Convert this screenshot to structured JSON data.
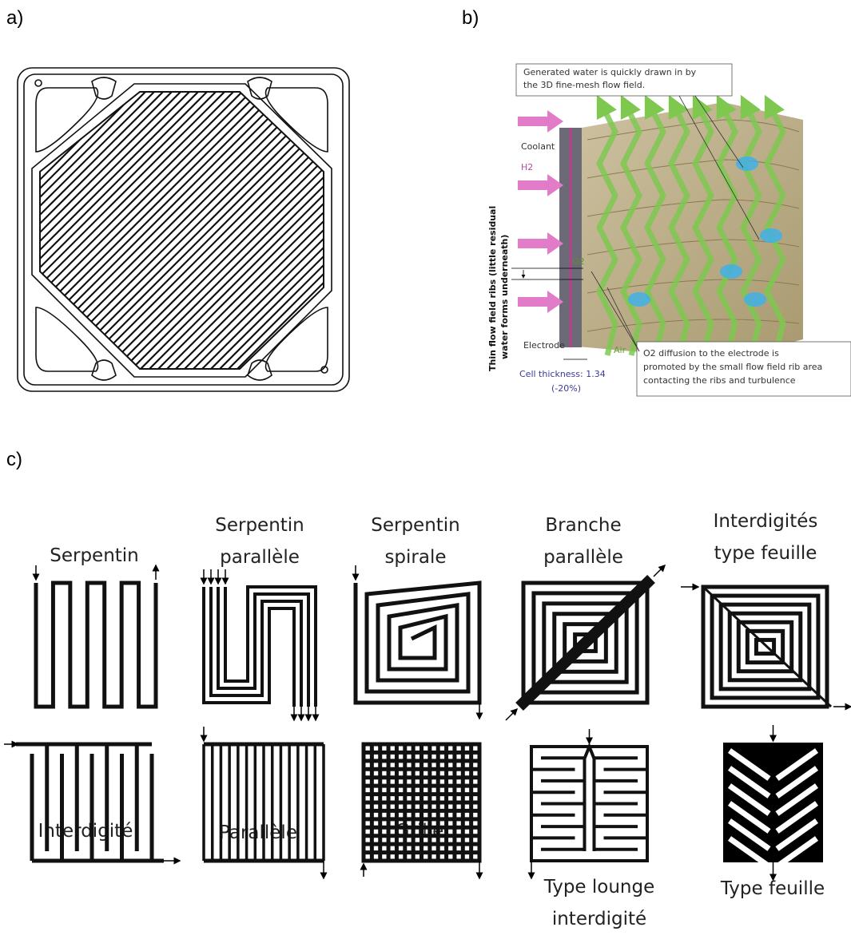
{
  "panels": {
    "a": {
      "label": "a)"
    },
    "b": {
      "label": "b)",
      "annotations": {
        "generated_water": [
          "Generated water is quickly drawn in by",
          "the 3D fine-mesh flow field."
        ],
        "coolant": "Coolant",
        "h2": "H2",
        "o2": "O2",
        "electrode": "Electrode",
        "air": "Air",
        "thin_ribs": [
          "Thin flow field ribs (little residual",
          "water forms underneath)"
        ],
        "cell_thickness": [
          "Cell thickness: 1.34",
          "(-20%)"
        ],
        "o2_diffusion": [
          "O2 diffusion to the electrode is",
          "promoted by the small flow field rib area",
          "contacting the ribs and turbulence"
        ]
      }
    },
    "c": {
      "label": "c)",
      "patterns": [
        [
          "Serpentin"
        ],
        [
          "Serpentin",
          "parallèle"
        ],
        [
          "Serpentin",
          "spirale"
        ],
        [
          "Branche",
          "parallèle"
        ],
        [
          "Interdigités",
          "type feuille"
        ],
        [
          "Interdigité"
        ],
        [
          "Parallèle"
        ],
        [
          "Grille"
        ],
        [
          "Type lounge",
          "interdigité"
        ],
        [
          "Type feuille"
        ]
      ]
    }
  }
}
